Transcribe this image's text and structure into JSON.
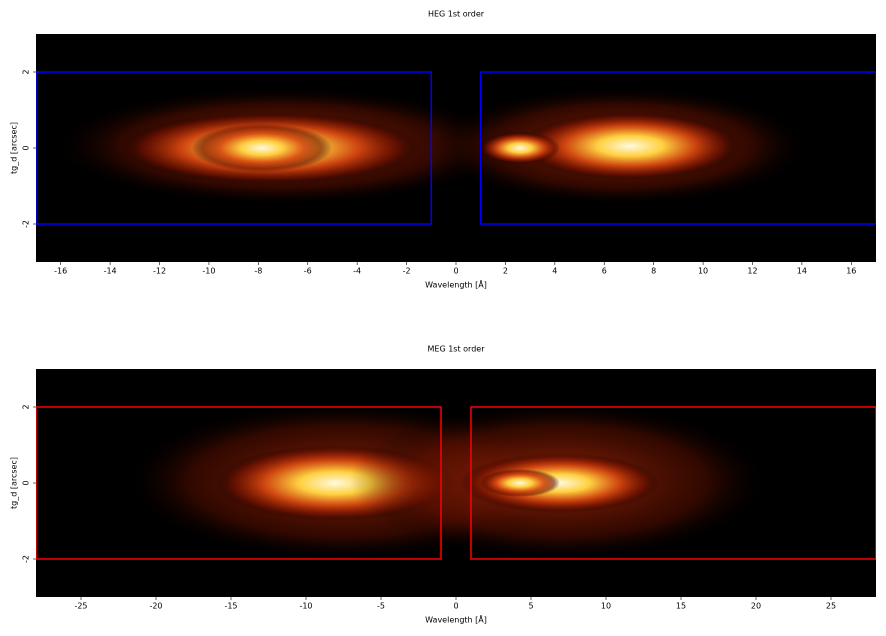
{
  "chart_data": [
    {
      "type": "heatmap",
      "title": "HEG 1st order",
      "xlabel": "Wavelength [Å]",
      "ylabel": "tg_d [arcsec]",
      "xlim": [
        -17,
        17
      ],
      "ylim": [
        -3,
        3
      ],
      "xticks": [
        -16,
        -14,
        -12,
        -10,
        -8,
        -6,
        -4,
        -2,
        0,
        2,
        4,
        6,
        8,
        10,
        12,
        14,
        16
      ],
      "yticks": [
        -2,
        0,
        2
      ],
      "regions": [
        {
          "x": [
            -17,
            -1
          ],
          "y": [
            -2,
            2
          ]
        },
        {
          "x": [
            1,
            17
          ],
          "y": [
            -2,
            2
          ]
        }
      ],
      "region_color": "#0000ff"
    },
    {
      "type": "heatmap",
      "title": "MEG 1st order",
      "xlabel": "Wavelength [Å]",
      "ylabel": "tg_d [arcsec]",
      "xlim": [
        -28,
        28
      ],
      "ylim": [
        -3,
        3
      ],
      "xticks": [
        -25,
        -20,
        -15,
        -10,
        -5,
        0,
        5,
        10,
        15,
        20,
        25
      ],
      "yticks": [
        -2,
        0,
        2
      ],
      "regions": [
        {
          "x": [
            -28,
            -1
          ],
          "y": [
            -2,
            2
          ]
        },
        {
          "x": [
            1,
            28
          ],
          "y": [
            -2,
            2
          ]
        }
      ],
      "region_color": "#ff0000"
    }
  ]
}
